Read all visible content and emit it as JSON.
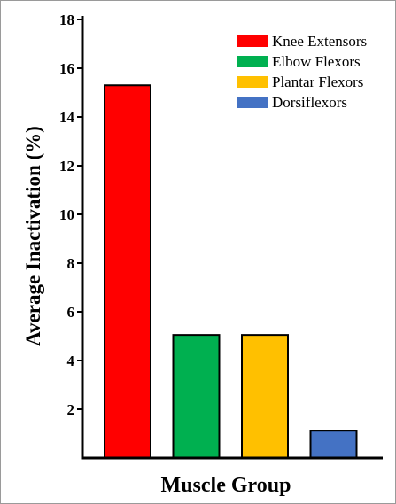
{
  "chart_data": {
    "type": "bar",
    "categories": [
      "Knee Extensors",
      "Elbow Flexors",
      "Plantar Flexors",
      "Dorsiflexors"
    ],
    "values": [
      15.3,
      5.05,
      5.05,
      1.12
    ],
    "colors": [
      "#ff0000",
      "#00b050",
      "#ffc000",
      "#4472c4"
    ],
    "xlabel": "Muscle Group",
    "ylabel": "Average Inactivation (%)",
    "ylim": [
      0,
      18
    ],
    "yticks": [
      2,
      4,
      6,
      8,
      10,
      12,
      14,
      16,
      18
    ],
    "grid": false,
    "legend": {
      "position": "top-right",
      "entries": [
        "Knee Extensors",
        "Elbow Flexors",
        "Plantar Flexors",
        "Dorsiflexors"
      ]
    }
  }
}
